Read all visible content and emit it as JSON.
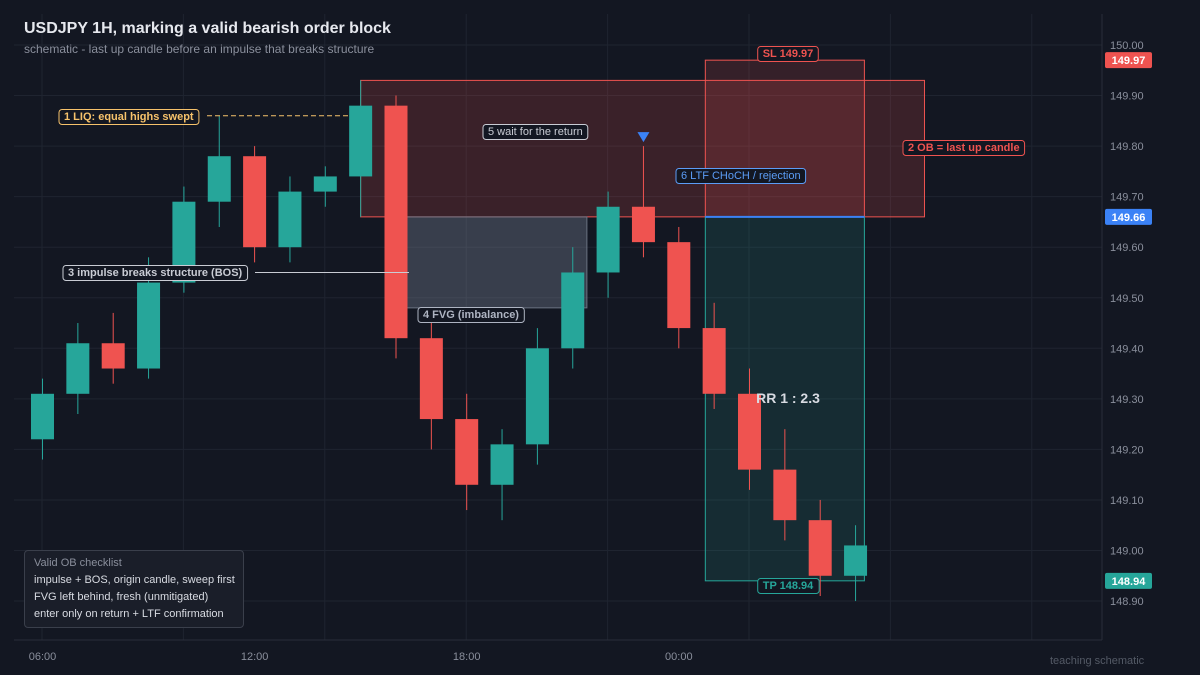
{
  "title": "USDJPY 1H, marking a valid bearish order block",
  "subtitle": "schematic  -  last up candle before an impulse that breaks structure",
  "watermark": "teaching schematic",
  "colors": {
    "background": "#131722",
    "bull": "#26a69a",
    "bear": "#ef5350",
    "entry": "#3b82f6",
    "liquidity": "#f6c26b",
    "fvg": "#8892a6"
  },
  "chart_data": {
    "type": "candlestick",
    "symbol": "USDJPY",
    "timeframe": "1H",
    "y_ticks": [
      "150.00",
      "149.90",
      "149.80",
      "149.70",
      "149.60",
      "149.50",
      "149.40",
      "149.30",
      "149.20",
      "149.10",
      "149.00",
      "148.90"
    ],
    "ylim": [
      148.82,
      150.07
    ],
    "x_tick_labels": [
      {
        "label": "06:00",
        "index": 0
      },
      {
        "label": "12:00",
        "index": 6
      },
      {
        "label": "18:00",
        "index": 12
      },
      {
        "label": "00:00",
        "index": 18
      }
    ],
    "grid": true,
    "candles": [
      {
        "o": 149.22,
        "h": 149.34,
        "l": 149.18,
        "c": 149.31
      },
      {
        "o": 149.31,
        "h": 149.45,
        "l": 149.27,
        "c": 149.41
      },
      {
        "o": 149.41,
        "h": 149.47,
        "l": 149.33,
        "c": 149.36
      },
      {
        "o": 149.36,
        "h": 149.58,
        "l": 149.34,
        "c": 149.53
      },
      {
        "o": 149.53,
        "h": 149.72,
        "l": 149.51,
        "c": 149.69
      },
      {
        "o": 149.69,
        "h": 149.86,
        "l": 149.64,
        "c": 149.78
      },
      {
        "o": 149.78,
        "h": 149.8,
        "l": 149.57,
        "c": 149.6
      },
      {
        "o": 149.6,
        "h": 149.74,
        "l": 149.57,
        "c": 149.71
      },
      {
        "o": 149.71,
        "h": 149.76,
        "l": 149.68,
        "c": 149.74
      },
      {
        "o": 149.74,
        "h": 149.93,
        "l": 149.66,
        "c": 149.88
      },
      {
        "o": 149.88,
        "h": 149.9,
        "l": 149.38,
        "c": 149.42
      },
      {
        "o": 149.42,
        "h": 149.45,
        "l": 149.2,
        "c": 149.26
      },
      {
        "o": 149.26,
        "h": 149.31,
        "l": 149.08,
        "c": 149.13
      },
      {
        "o": 149.13,
        "h": 149.24,
        "l": 149.06,
        "c": 149.21
      },
      {
        "o": 149.21,
        "h": 149.44,
        "l": 149.17,
        "c": 149.4
      },
      {
        "o": 149.4,
        "h": 149.6,
        "l": 149.36,
        "c": 149.55
      },
      {
        "o": 149.55,
        "h": 149.71,
        "l": 149.5,
        "c": 149.68
      },
      {
        "o": 149.68,
        "h": 149.8,
        "l": 149.58,
        "c": 149.61
      },
      {
        "o": 149.61,
        "h": 149.64,
        "l": 149.4,
        "c": 149.44
      },
      {
        "o": 149.44,
        "h": 149.49,
        "l": 149.28,
        "c": 149.31
      },
      {
        "o": 149.31,
        "h": 149.36,
        "l": 149.12,
        "c": 149.16
      },
      {
        "o": 149.16,
        "h": 149.24,
        "l": 149.02,
        "c": 149.06
      },
      {
        "o": 149.06,
        "h": 149.1,
        "l": 148.91,
        "c": 148.95
      },
      {
        "o": 148.95,
        "h": 149.05,
        "l": 148.9,
        "c": 149.01
      }
    ],
    "price_tags": [
      {
        "value": 149.97,
        "text": "149.97",
        "color": "#ef5350"
      },
      {
        "value": 149.66,
        "text": "149.66",
        "color": "#3b82f6"
      },
      {
        "value": 148.94,
        "text": "148.94",
        "color": "#26a69a"
      }
    ],
    "zones": {
      "order_block": {
        "top": 149.93,
        "bottom": 149.66,
        "from": 9,
        "to": 24.95
      },
      "fvg": {
        "top": 149.66,
        "bottom": 149.48,
        "from": 9.95,
        "to": 15.4
      },
      "stop": {
        "top": 149.97,
        "bottom": 149.66,
        "from": 18.75,
        "to": 23.25
      },
      "target": {
        "top": 149.66,
        "bottom": 148.94,
        "from": 18.75,
        "to": 23.25
      }
    },
    "entry_level": 149.66,
    "liquidity_level": 149.86,
    "bos_level": 149.55,
    "annotations": [
      {
        "id": "liq",
        "text": "1  LIQ: equal highs swept",
        "color": "#f6c26b"
      },
      {
        "id": "ob",
        "text": "2  OB = last up candle",
        "color": "#ef5350"
      },
      {
        "id": "bos",
        "text": "3  impulse breaks structure (BOS)",
        "color": "#c9ccd4"
      },
      {
        "id": "fvg",
        "text": "4  FVG (imbalance)",
        "color": "#aeb4c2"
      },
      {
        "id": "wait",
        "text": "5  wait for the return",
        "color": "#c9ccd4"
      },
      {
        "id": "choch",
        "text": "6  LTF CHoCH / rejection",
        "color": "#5b9cf6"
      },
      {
        "id": "sl",
        "text": "SL 149.97",
        "color": "#ef5350"
      },
      {
        "id": "tp",
        "text": "TP 148.94",
        "color": "#26a69a"
      }
    ],
    "rr_label": "RR 1 : 2.3"
  },
  "checklist": {
    "heading": "Valid OB checklist",
    "items": [
      "impulse + BOS, origin candle, sweep first",
      "FVG left behind, fresh (unmitigated)",
      "enter only on return + LTF confirmation"
    ]
  }
}
